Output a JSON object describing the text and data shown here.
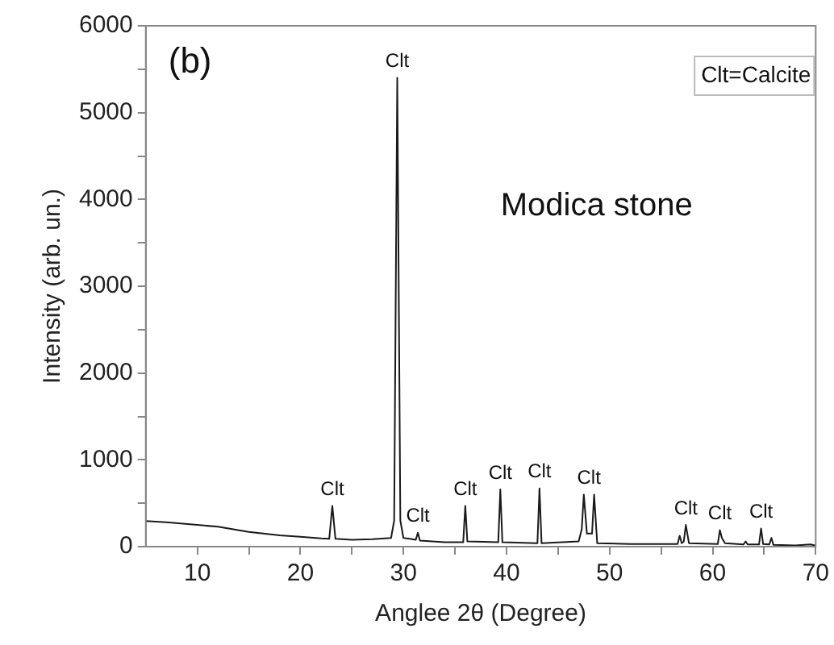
{
  "chart_data": {
    "type": "line",
    "xlabel": "Anglee 2θ (Degree)",
    "ylabel": "Intensity (arb. un.)",
    "xlim": [
      5,
      70
    ],
    "xticks": [
      10,
      {
        "value": 15,
        "label": null
      },
      20,
      {
        "value": 25,
        "label": null
      },
      30,
      {
        "value": 35,
        "label": null
      },
      40,
      {
        "value": 45,
        "label": null
      },
      50,
      {
        "value": 55,
        "label": null
      },
      60,
      {
        "value": 65,
        "label": null
      },
      70
    ],
    "ylim": [
      0,
      6000
    ],
    "yticks": [
      0,
      {
        "value": 500,
        "label": null
      },
      1000,
      {
        "value": 1500,
        "label": null
      },
      2000,
      {
        "value": 2500,
        "label": null
      },
      3000,
      {
        "value": 3500,
        "label": null
      },
      4000,
      {
        "value": 4500,
        "label": null
      },
      5000,
      {
        "value": 5500,
        "label": null
      },
      6000
    ],
    "grid": false,
    "legend": false,
    "marker": "none",
    "line_style": "solid",
    "series": [
      {
        "color": "#1a1a1a",
        "x": [
          5,
          7,
          10,
          12,
          15,
          18,
          20,
          22,
          22.8,
          23.1,
          23.4,
          25,
          27,
          28.8,
          29.1,
          29.4,
          29.7,
          30,
          31.2,
          31.4,
          31.6,
          34,
          35.8,
          36,
          36.2,
          39.2,
          39.4,
          39.6,
          43,
          43.2,
          43.4,
          47,
          47.3,
          47.5,
          47.8,
          48.3,
          48.5,
          48.8,
          52,
          56.6,
          56.8,
          57,
          57.2,
          57.4,
          57.7,
          60.5,
          60.7,
          60.9,
          61.2,
          63,
          63.2,
          63.4,
          64.5,
          64.7,
          64.9,
          65.5,
          65.7,
          65.9,
          68,
          69.5,
          70
        ],
        "values": [
          295,
          280,
          250,
          230,
          170,
          130,
          113,
          95,
          90,
          470,
          90,
          80,
          85,
          100,
          300,
          5400,
          300,
          100,
          80,
          160,
          70,
          50,
          50,
          470,
          60,
          50,
          660,
          50,
          40,
          670,
          40,
          60,
          200,
          600,
          150,
          150,
          600,
          40,
          30,
          30,
          125,
          40,
          60,
          250,
          40,
          30,
          190,
          100,
          40,
          25,
          60,
          25,
          25,
          210,
          30,
          25,
          100,
          20,
          15,
          25,
          12
        ]
      }
    ],
    "annotations": [
      "(b)",
      "Clt=Calcite",
      "Modica stone",
      {
        "text": "Clt",
        "x": 23.1,
        "y": 470
      },
      {
        "text": "Clt",
        "x": 29.4,
        "y": 5400
      },
      {
        "text": "Clt",
        "x": 31.4,
        "y": 160
      },
      {
        "text": "Clt",
        "x": 36,
        "y": 470
      },
      {
        "text": "Clt",
        "x": 39.4,
        "y": 660
      },
      {
        "text": "Clt",
        "x": 43.2,
        "y": 670
      },
      {
        "text": "Clt",
        "x": 48,
        "y": 600
      },
      {
        "text": "Clt",
        "x": 57.4,
        "y": 250
      },
      {
        "text": "Clt",
        "x": 60.7,
        "y": 190
      },
      {
        "text": "Clt",
        "x": 64.7,
        "y": 210
      }
    ]
  }
}
